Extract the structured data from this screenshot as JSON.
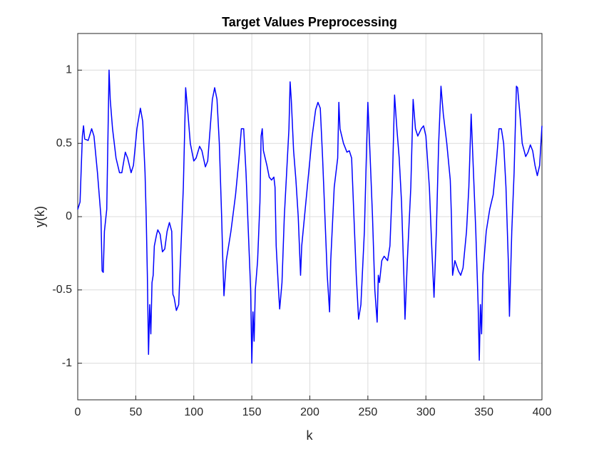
{
  "chart_data": {
    "type": "line",
    "title": "Target Values Preprocessing",
    "x_label": "k",
    "y_label": "y(k)",
    "x": [
      0,
      2,
      4,
      5,
      6,
      9,
      12,
      14,
      17,
      20,
      21,
      22,
      23,
      25,
      27,
      28,
      30,
      33,
      36,
      38,
      41,
      43,
      46,
      48,
      51,
      54,
      56,
      58,
      59,
      60,
      61,
      62,
      63,
      64,
      65,
      66,
      68,
      69,
      71,
      73,
      75,
      77,
      79,
      81,
      82,
      83,
      85,
      87,
      89,
      91,
      93,
      95,
      97,
      100,
      102,
      105,
      107,
      110,
      112,
      116,
      118,
      120,
      122,
      124,
      125,
      126,
      128,
      132,
      136,
      139,
      141,
      143,
      145,
      147,
      149,
      150,
      151,
      152,
      153,
      155,
      157,
      158,
      159,
      160,
      163,
      165,
      167,
      169,
      170,
      171,
      173,
      174,
      176,
      178,
      180,
      182,
      183,
      184,
      186,
      188,
      190,
      192,
      193,
      196,
      199,
      202,
      205,
      207,
      209,
      211,
      213,
      215,
      217,
      218,
      221,
      224,
      225,
      226,
      229,
      232,
      234,
      236,
      238,
      240,
      242,
      244,
      247,
      249,
      250,
      252,
      254,
      256,
      258,
      259,
      260,
      262,
      264,
      267,
      269,
      271,
      273,
      275,
      277,
      279,
      281,
      282,
      284,
      287,
      289,
      291,
      293,
      296,
      298,
      300,
      303,
      305,
      307,
      309,
      311,
      313,
      315,
      318,
      321,
      322,
      323,
      324,
      325,
      328,
      330,
      332,
      335,
      337,
      338,
      339,
      341,
      343,
      345,
      346,
      347,
      348,
      349,
      352,
      355,
      358,
      361,
      363,
      365,
      367,
      369,
      371,
      372,
      374,
      376,
      378,
      379,
      381,
      383,
      386,
      388,
      390,
      392,
      394,
      396,
      398,
      400
    ],
    "series": [
      {
        "color": "#0000ff",
        "values": [
          0.05,
          0.1,
          0.55,
          0.62,
          0.53,
          0.52,
          0.6,
          0.55,
          0.3,
          0.0,
          -0.37,
          -0.38,
          -0.1,
          0.05,
          1.0,
          0.8,
          0.6,
          0.4,
          0.3,
          0.3,
          0.44,
          0.4,
          0.3,
          0.35,
          0.6,
          0.74,
          0.65,
          0.3,
          0.0,
          -0.4,
          -0.94,
          -0.6,
          -0.8,
          -0.45,
          -0.4,
          -0.2,
          -0.12,
          -0.09,
          -0.12,
          -0.24,
          -0.22,
          -0.1,
          -0.04,
          -0.1,
          -0.53,
          -0.55,
          -0.64,
          -0.6,
          -0.2,
          0.2,
          0.88,
          0.7,
          0.5,
          0.38,
          0.4,
          0.48,
          0.45,
          0.34,
          0.38,
          0.8,
          0.88,
          0.8,
          0.5,
          0.0,
          -0.3,
          -0.54,
          -0.3,
          -0.1,
          0.15,
          0.4,
          0.6,
          0.6,
          0.3,
          -0.1,
          -0.5,
          -1.0,
          -0.65,
          -0.85,
          -0.5,
          -0.3,
          0.1,
          0.55,
          0.6,
          0.45,
          0.35,
          0.27,
          0.25,
          0.27,
          0.2,
          -0.2,
          -0.5,
          -0.63,
          -0.45,
          0.0,
          0.3,
          0.6,
          0.92,
          0.8,
          0.45,
          0.25,
          0.0,
          -0.4,
          -0.2,
          0.05,
          0.3,
          0.55,
          0.73,
          0.78,
          0.74,
          0.4,
          0.0,
          -0.4,
          -0.65,
          -0.3,
          0.2,
          0.4,
          0.78,
          0.6,
          0.5,
          0.44,
          0.45,
          0.4,
          0.0,
          -0.4,
          -0.7,
          -0.6,
          -0.1,
          0.5,
          0.78,
          0.4,
          0.0,
          -0.5,
          -0.72,
          -0.4,
          -0.45,
          -0.3,
          -0.27,
          -0.3,
          -0.2,
          0.2,
          0.83,
          0.6,
          0.4,
          0.1,
          -0.4,
          -0.7,
          -0.3,
          0.2,
          0.8,
          0.6,
          0.55,
          0.6,
          0.62,
          0.55,
          0.2,
          -0.2,
          -0.55,
          -0.1,
          0.5,
          0.89,
          0.7,
          0.5,
          0.25,
          0.0,
          -0.4,
          -0.35,
          -0.3,
          -0.37,
          -0.4,
          -0.35,
          -0.1,
          0.2,
          0.45,
          0.7,
          0.3,
          -0.1,
          -0.6,
          -0.98,
          -0.6,
          -0.8,
          -0.4,
          -0.1,
          0.05,
          0.15,
          0.4,
          0.6,
          0.6,
          0.5,
          0.2,
          -0.3,
          -0.68,
          -0.1,
          0.3,
          0.89,
          0.88,
          0.7,
          0.5,
          0.41,
          0.44,
          0.49,
          0.45,
          0.35,
          0.28,
          0.35,
          0.62
        ]
      }
    ],
    "xlim": [
      0,
      400
    ],
    "xticks": [
      0,
      50,
      100,
      150,
      200,
      250,
      300,
      350,
      400
    ],
    "ylim": [
      -1.25,
      1.25
    ],
    "yticks": [
      -1,
      -0.5,
      0,
      0.5,
      1
    ],
    "grid": true
  }
}
